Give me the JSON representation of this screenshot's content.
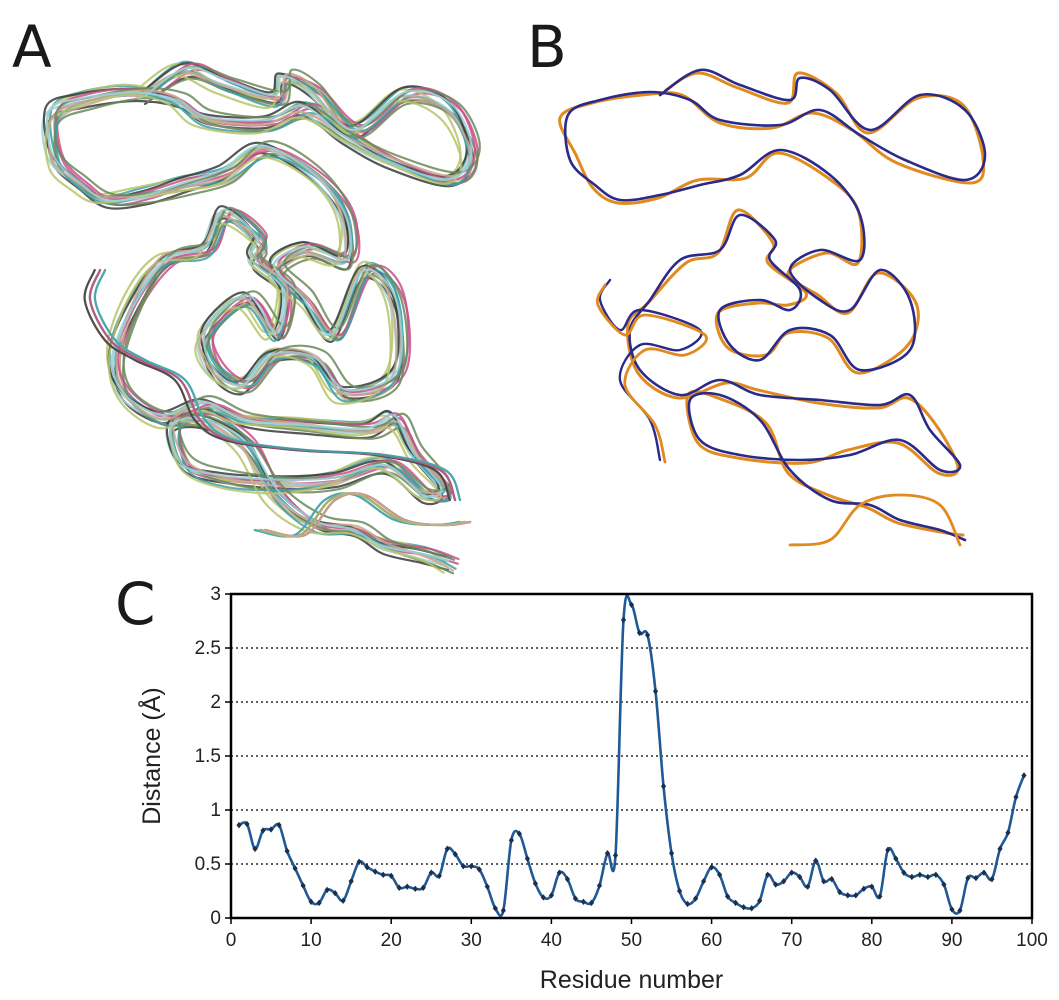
{
  "panels": {
    "a": "A",
    "b": "B",
    "c": "C"
  },
  "colors": {
    "series": "#1f5a96",
    "ensemble": [
      "#3a3a3a",
      "#c8508a",
      "#3aa0a8",
      "#b9c46a",
      "#c8a890",
      "#6a8a5a",
      "#9fd0d8"
    ],
    "overlay_blue": "#2a2a8a",
    "overlay_orange": "#e08a20"
  },
  "chart_data": {
    "type": "line",
    "xlabel": "Residue number",
    "ylabel": "Distance (Å)",
    "xlim": [
      0,
      100
    ],
    "ylim": [
      0,
      3
    ],
    "xticks": [
      0,
      10,
      20,
      30,
      40,
      50,
      60,
      70,
      80,
      90,
      100
    ],
    "yticks": [
      0,
      0.5,
      1,
      1.5,
      2,
      2.5,
      3
    ],
    "ytick_labels": [
      "0",
      "0.5",
      "1",
      "1.5",
      "2",
      "2.5",
      "3"
    ],
    "grid": "horizontal dotted",
    "x": [
      1,
      2,
      3,
      4,
      5,
      6,
      7,
      8,
      9,
      10,
      11,
      12,
      13,
      14,
      15,
      16,
      17,
      18,
      19,
      20,
      21,
      22,
      23,
      24,
      25,
      26,
      27,
      28,
      29,
      30,
      31,
      32,
      33,
      34,
      35,
      36,
      37,
      38,
      39,
      40,
      41,
      42,
      43,
      44,
      45,
      46,
      47,
      48,
      49,
      50,
      51,
      52,
      53,
      54,
      55,
      56,
      57,
      58,
      59,
      60,
      61,
      62,
      63,
      64,
      65,
      66,
      67,
      68,
      69,
      70,
      71,
      72,
      73,
      74,
      75,
      76,
      77,
      78,
      79,
      80,
      81,
      82,
      83,
      84,
      85,
      86,
      87,
      88,
      89,
      90,
      91,
      92,
      93,
      94,
      95,
      96,
      97,
      98,
      99
    ],
    "values": [
      0.86,
      0.87,
      0.64,
      0.81,
      0.82,
      0.86,
      0.62,
      0.46,
      0.3,
      0.15,
      0.14,
      0.26,
      0.23,
      0.16,
      0.34,
      0.52,
      0.47,
      0.43,
      0.4,
      0.39,
      0.28,
      0.29,
      0.27,
      0.28,
      0.42,
      0.39,
      0.64,
      0.59,
      0.48,
      0.48,
      0.45,
      0.29,
      0.09,
      0.07,
      0.72,
      0.78,
      0.55,
      0.32,
      0.19,
      0.21,
      0.42,
      0.36,
      0.18,
      0.15,
      0.14,
      0.3,
      0.6,
      0.58,
      2.76,
      2.9,
      2.64,
      2.62,
      2.1,
      1.22,
      0.6,
      0.25,
      0.13,
      0.18,
      0.34,
      0.47,
      0.4,
      0.2,
      0.14,
      0.1,
      0.09,
      0.16,
      0.4,
      0.31,
      0.34,
      0.42,
      0.38,
      0.29,
      0.53,
      0.34,
      0.36,
      0.24,
      0.21,
      0.21,
      0.27,
      0.29,
      0.2,
      0.63,
      0.55,
      0.42,
      0.38,
      0.4,
      0.38,
      0.4,
      0.31,
      0.08,
      0.07,
      0.37,
      0.37,
      0.42,
      0.36,
      0.64,
      0.79,
      1.12,
      1.32
    ]
  }
}
